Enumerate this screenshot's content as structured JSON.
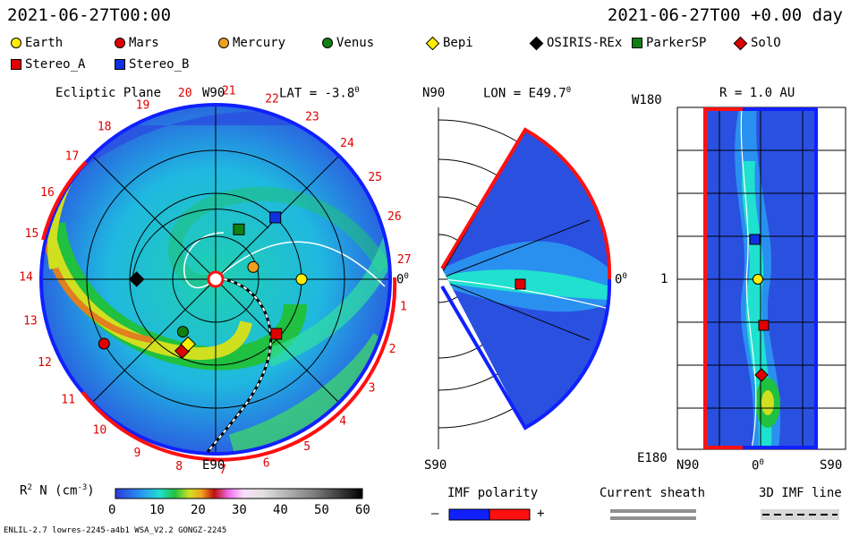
{
  "header": {
    "date_left": "2021-06-27T00:00",
    "date_right": "2021-06-27T00 +0.00 day"
  },
  "legend": [
    {
      "label": "Earth",
      "shape": "circle",
      "color": "#ffee00"
    },
    {
      "label": "Mars",
      "shape": "circle",
      "color": "#e00000"
    },
    {
      "label": "Mercury",
      "shape": "circle",
      "color": "#f0a020"
    },
    {
      "label": "Venus",
      "shape": "circle",
      "color": "#108010"
    },
    {
      "label": "Bepi",
      "shape": "diamond",
      "color": "#ffee00"
    },
    {
      "label": "OSIRIS-REx",
      "shape": "diamond",
      "color": "#000000"
    },
    {
      "label": "ParkerSP",
      "shape": "square",
      "color": "#108010"
    },
    {
      "label": "SolO",
      "shape": "diamond",
      "color": "#e00000"
    },
    {
      "label": "Stereo_A",
      "shape": "square",
      "color": "#e00000"
    },
    {
      "label": "Stereo_B",
      "shape": "square",
      "color": "#1030e0"
    }
  ],
  "panels": {
    "ecliptic": {
      "title": "Ecliptic Plane",
      "top_label": "W90",
      "lat": "LAT = -3.8",
      "deg": "0",
      "right_label": "0",
      "right_deg": "0",
      "bottom_label": "E90",
      "carrington": [
        "1",
        "2",
        "3",
        "4",
        "5",
        "6",
        "7",
        "8",
        "9",
        "10",
        "11",
        "12",
        "13",
        "14",
        "15",
        "16",
        "17",
        "18",
        "19",
        "20",
        "21",
        "22",
        "23",
        "24",
        "25",
        "26",
        "27"
      ]
    },
    "meridional": {
      "top_label": "N90",
      "lon": "LON = E49.7",
      "deg": "0",
      "right_label": "0",
      "right_deg": "0",
      "bottom_label": "S90"
    },
    "radial": {
      "r_label": "R = 1.0 AU",
      "y_top": "W180",
      "y_mid": "1",
      "y_bottom": "E180",
      "x_left": "N90",
      "x_mid": "0",
      "x_deg": "0",
      "x_right": "S90"
    }
  },
  "colorbar": {
    "label": "R",
    "label_sup": "2",
    "label_rest": " N (cm",
    "label_exp": "-3",
    "label_end": ")",
    "ticks": [
      "0",
      "10",
      "20",
      "30",
      "40",
      "50",
      "60"
    ]
  },
  "imf_polarity": {
    "title": "IMF polarity",
    "minus": "–",
    "plus": "+"
  },
  "current_sheath": {
    "title": "Current sheath"
  },
  "imf_line": {
    "title": "3D IMF line"
  },
  "footer": {
    "left": "ENLIL-2.7 lowres-2245-a4b1 WSA_V2.2 GONGZ-2245"
  },
  "chart_data": [
    {
      "type": "heatmap",
      "title": "Ecliptic Plane",
      "quantity": "R^2 N (cm^-3)",
      "color_range": [
        0,
        60
      ],
      "lat": -3.8,
      "objects": [
        {
          "name": "Earth",
          "angle_deg": 0,
          "r_au": 1.0
        },
        {
          "name": "Mercury",
          "angle_deg": 18,
          "r_au": 0.46
        },
        {
          "name": "Venus",
          "angle_deg": -122,
          "r_au": 0.72
        },
        {
          "name": "Mars",
          "angle_deg": -150,
          "r_au": 1.5
        },
        {
          "name": "OSIRIS-REx",
          "angle_deg": 180,
          "r_au": 0.92
        },
        {
          "name": "ParkerSP",
          "angle_deg": 65,
          "r_au": 0.64
        },
        {
          "name": "Stereo_A",
          "angle_deg": -42,
          "r_au": 0.95
        },
        {
          "name": "Stereo_B",
          "angle_deg": 46,
          "r_au": 1.0
        },
        {
          "name": "SolO",
          "angle_deg": -115,
          "r_au": 0.92
        },
        {
          "name": "Bepi",
          "angle_deg": -113,
          "r_au": 0.82
        }
      ]
    },
    {
      "type": "heatmap",
      "title": "LON = E49.7",
      "objects": [
        {
          "name": "Stereo_A",
          "lat_deg": 0,
          "r_au": 0.95
        }
      ]
    },
    {
      "type": "heatmap",
      "title": "R = 1.0 AU",
      "objects": [
        {
          "name": "Stereo_B",
          "lon_deg": 46
        },
        {
          "name": "Earth",
          "lon_deg": 0
        },
        {
          "name": "Stereo_A",
          "lon_deg": -42
        },
        {
          "name": "SolO",
          "lon_deg": -115
        }
      ]
    }
  ]
}
